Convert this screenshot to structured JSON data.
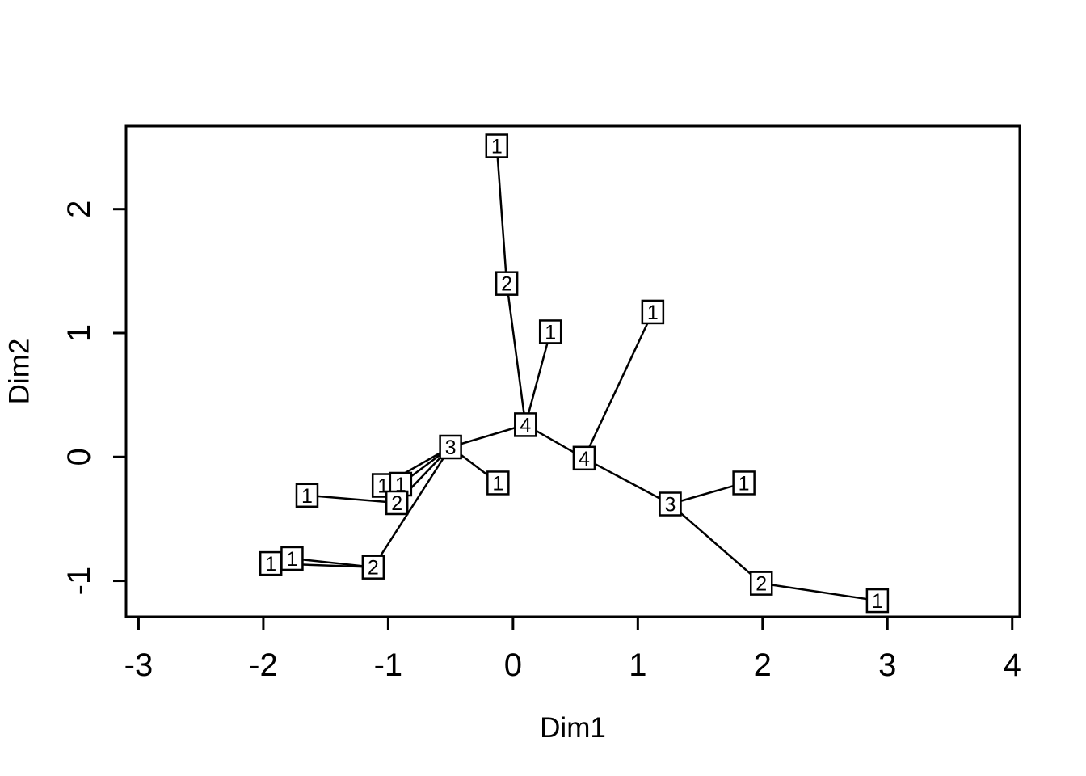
{
  "figure": {
    "background": "#ffffff",
    "foreground": "#000000"
  },
  "chart_data": {
    "type": "scatter",
    "subtype": "tree-network-mst",
    "title": "",
    "xlabel": "Dim1",
    "ylabel": "Dim2",
    "xlim": [
      -3.1,
      4.06
    ],
    "ylim": [
      -1.29,
      2.67
    ],
    "x_ticks": [
      -3,
      -2,
      -1,
      0,
      1,
      2,
      3,
      4
    ],
    "y_ticks": [
      -1,
      0,
      1,
      2
    ],
    "grid": false,
    "legend": false,
    "marker": "labeled-square",
    "colors": {
      "stroke": "#000000",
      "node_fill": "#ffffff",
      "text": "#000000"
    },
    "nodes": [
      {
        "label": "1",
        "x": -0.13,
        "y": 2.51
      },
      {
        "label": "2",
        "x": -0.05,
        "y": 1.4
      },
      {
        "label": "1",
        "x": 0.3,
        "y": 1.01
      },
      {
        "label": "1",
        "x": 1.12,
        "y": 1.17
      },
      {
        "label": "4",
        "x": 0.1,
        "y": 0.26
      },
      {
        "label": "4",
        "x": 0.57,
        "y": -0.01
      },
      {
        "label": "3",
        "x": -0.5,
        "y": 0.08
      },
      {
        "label": "1",
        "x": -1.04,
        "y": -0.23
      },
      {
        "label": "1",
        "x": -0.9,
        "y": -0.22
      },
      {
        "label": "2",
        "x": -0.93,
        "y": -0.37
      },
      {
        "label": "1",
        "x": -0.12,
        "y": -0.21
      },
      {
        "label": "1",
        "x": -1.65,
        "y": -0.31
      },
      {
        "label": "1",
        "x": -1.94,
        "y": -0.86
      },
      {
        "label": "1",
        "x": -1.77,
        "y": -0.82
      },
      {
        "label": "2",
        "x": -1.12,
        "y": -0.89
      },
      {
        "label": "3",
        "x": 1.26,
        "y": -0.38
      },
      {
        "label": "1",
        "x": 1.85,
        "y": -0.21
      },
      {
        "label": "2",
        "x": 1.99,
        "y": -1.02
      },
      {
        "label": "1",
        "x": 2.92,
        "y": -1.16
      }
    ],
    "edges": [
      [
        0,
        1
      ],
      [
        1,
        4
      ],
      [
        2,
        4
      ],
      [
        3,
        5
      ],
      [
        4,
        5
      ],
      [
        4,
        6
      ],
      [
        5,
        15
      ],
      [
        6,
        7
      ],
      [
        6,
        8
      ],
      [
        6,
        9
      ],
      [
        6,
        10
      ],
      [
        6,
        14
      ],
      [
        9,
        11
      ],
      [
        12,
        14
      ],
      [
        13,
        14
      ],
      [
        15,
        16
      ],
      [
        15,
        17
      ],
      [
        17,
        18
      ]
    ]
  }
}
